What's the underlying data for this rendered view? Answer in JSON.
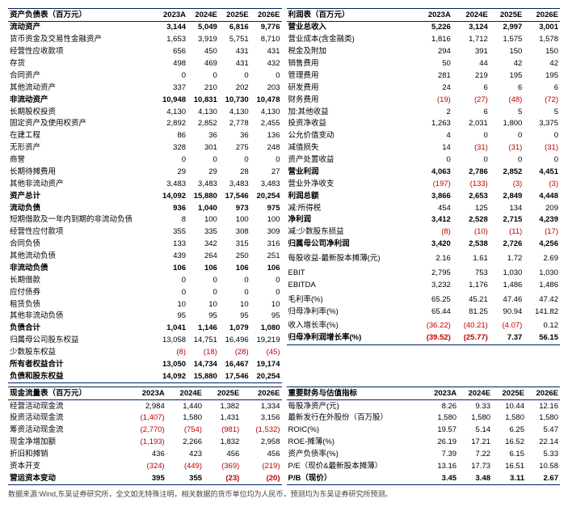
{
  "headers_years": [
    "2023A",
    "2024E",
    "2025E",
    "2026E"
  ],
  "left1": {
    "title": "资产负债表（百万元）",
    "rows": [
      {
        "lbl": "流动资产",
        "cls": "section-hdr",
        "v": [
          "3,144",
          "5,049",
          "6,816",
          "9,776"
        ]
      },
      {
        "lbl": "货币资金及交易性金融资产",
        "v": [
          "1,653",
          "3,919",
          "5,751",
          "8,710"
        ]
      },
      {
        "lbl": "经营性应收款项",
        "v": [
          "656",
          "450",
          "431",
          "431"
        ]
      },
      {
        "lbl": "存货",
        "v": [
          "498",
          "469",
          "431",
          "432"
        ]
      },
      {
        "lbl": "合同资产",
        "v": [
          "0",
          "0",
          "0",
          "0"
        ]
      },
      {
        "lbl": "其他流动资产",
        "v": [
          "337",
          "210",
          "202",
          "203"
        ]
      },
      {
        "lbl": "非流动资产",
        "cls": "section-hdr",
        "v": [
          "10,948",
          "10,831",
          "10,730",
          "10,478"
        ]
      },
      {
        "lbl": "长期股权投资",
        "v": [
          "4,130",
          "4,130",
          "4,130",
          "4,130"
        ]
      },
      {
        "lbl": "固定资产及使用权资产",
        "v": [
          "2,892",
          "2,852",
          "2,778",
          "2,455"
        ]
      },
      {
        "lbl": "在建工程",
        "v": [
          "86",
          "36",
          "36",
          "136"
        ]
      },
      {
        "lbl": "无形资产",
        "v": [
          "328",
          "301",
          "275",
          "248"
        ]
      },
      {
        "lbl": "商誉",
        "v": [
          "0",
          "0",
          "0",
          "0"
        ]
      },
      {
        "lbl": "长期待摊费用",
        "v": [
          "29",
          "29",
          "28",
          "27"
        ]
      },
      {
        "lbl": "其他非流动资产",
        "v": [
          "3,483",
          "3,483",
          "3,483",
          "3,483"
        ]
      },
      {
        "lbl": "资产总计",
        "cls": "total",
        "v": [
          "14,092",
          "15,880",
          "17,546",
          "20,254"
        ]
      },
      {
        "lbl": "流动负债",
        "cls": "section-hdr",
        "v": [
          "936",
          "1,040",
          "973",
          "975"
        ]
      },
      {
        "lbl": "短期借款及一年内到期的非流动负债",
        "v": [
          "8",
          "100",
          "100",
          "100"
        ]
      },
      {
        "lbl": "经营性应付款项",
        "v": [
          "355",
          "335",
          "308",
          "309"
        ]
      },
      {
        "lbl": "合同负债",
        "v": [
          "133",
          "342",
          "315",
          "316"
        ]
      },
      {
        "lbl": "其他流动负债",
        "v": [
          "439",
          "264",
          "250",
          "251"
        ]
      },
      {
        "lbl": "非流动负债",
        "cls": "section-hdr",
        "v": [
          "106",
          "106",
          "106",
          "106"
        ]
      },
      {
        "lbl": "长期借款",
        "v": [
          "0",
          "0",
          "0",
          "0"
        ]
      },
      {
        "lbl": "应付债券",
        "v": [
          "0",
          "0",
          "0",
          "0"
        ]
      },
      {
        "lbl": "租赁负债",
        "v": [
          "10",
          "10",
          "10",
          "10"
        ]
      },
      {
        "lbl": "其他非流动负债",
        "v": [
          "95",
          "95",
          "95",
          "95"
        ]
      },
      {
        "lbl": "负债合计",
        "cls": "total",
        "v": [
          "1,041",
          "1,146",
          "1,079",
          "1,080"
        ]
      },
      {
        "lbl": "归属母公司股东权益",
        "v": [
          "13,058",
          "14,751",
          "16,496",
          "19,219"
        ]
      },
      {
        "lbl": "少数股东权益",
        "v": [
          "(8)",
          "(18)",
          "(28)",
          "(45)"
        ],
        "neg": [
          1,
          1,
          1,
          1
        ]
      },
      {
        "lbl": "所有者权益合计",
        "cls": "total",
        "v": [
          "13,050",
          "14,734",
          "16,467",
          "19,174"
        ]
      },
      {
        "lbl": "负债和股东权益",
        "cls": "last-total",
        "v": [
          "14,092",
          "15,880",
          "17,546",
          "20,254"
        ]
      }
    ]
  },
  "right1": {
    "title": "利润表（百万元）",
    "rows": [
      {
        "lbl": "营业总收入",
        "cls": "section-hdr",
        "v": [
          "5,226",
          "3,124",
          "2,997",
          "3,001"
        ]
      },
      {
        "lbl": "营业成本(含金融类)",
        "v": [
          "1,816",
          "1,712",
          "1,575",
          "1,578"
        ]
      },
      {
        "lbl": "税金及附加",
        "v": [
          "294",
          "391",
          "150",
          "150"
        ]
      },
      {
        "lbl": "销售费用",
        "v": [
          "50",
          "44",
          "42",
          "42"
        ]
      },
      {
        "lbl": "管理费用",
        "v": [
          "281",
          "219",
          "195",
          "195"
        ]
      },
      {
        "lbl": "研发费用",
        "v": [
          "24",
          "6",
          "6",
          "6"
        ]
      },
      {
        "lbl": "财务费用",
        "v": [
          "(19)",
          "(27)",
          "(48)",
          "(72)"
        ],
        "neg": [
          1,
          1,
          1,
          1
        ]
      },
      {
        "lbl": "加:其他收益",
        "v": [
          "2",
          "6",
          "5",
          "5"
        ]
      },
      {
        "lbl": "投资净收益",
        "v": [
          "1,263",
          "2,031",
          "1,800",
          "3,375"
        ]
      },
      {
        "lbl": "公允价值变动",
        "v": [
          "4",
          "0",
          "0",
          "0"
        ]
      },
      {
        "lbl": "减值损失",
        "v": [
          "14",
          "(31)",
          "(31)",
          "(31)"
        ],
        "neg": [
          0,
          1,
          1,
          1
        ]
      },
      {
        "lbl": "资产处置收益",
        "v": [
          "0",
          "0",
          "0",
          "0"
        ]
      },
      {
        "lbl": "营业利润",
        "cls": "total",
        "v": [
          "4,063",
          "2,786",
          "2,852",
          "4,451"
        ]
      },
      {
        "lbl": "营业外净收支",
        "v": [
          "(197)",
          "(133)",
          "(3)",
          "(3)"
        ],
        "neg": [
          1,
          1,
          1,
          1
        ]
      },
      {
        "lbl": "利润总额",
        "cls": "total",
        "v": [
          "3,866",
          "2,653",
          "2,849",
          "4,448"
        ]
      },
      {
        "lbl": "减:所得税",
        "v": [
          "454",
          "125",
          "134",
          "209"
        ]
      },
      {
        "lbl": "净利润",
        "cls": "total",
        "v": [
          "3,412",
          "2,528",
          "2,715",
          "4,239"
        ]
      },
      {
        "lbl": "减:少数股东损益",
        "v": [
          "(8)",
          "(10)",
          "(11)",
          "(17)"
        ],
        "neg": [
          1,
          1,
          1,
          1
        ]
      },
      {
        "lbl": "归属母公司净利润",
        "cls": "total",
        "v": [
          "3,420",
          "2,538",
          "2,726",
          "4,256"
        ]
      },
      {
        "lbl": "",
        "v": [
          "",
          "",
          "",
          ""
        ]
      },
      {
        "lbl": "每股收益-最新股本摊薄(元)",
        "v": [
          "2.16",
          "1.61",
          "1.72",
          "2.69"
        ]
      },
      {
        "lbl": "",
        "v": [
          "",
          "",
          "",
          ""
        ]
      },
      {
        "lbl": "EBIT",
        "v": [
          "2,795",
          "753",
          "1,030",
          "1,030"
        ]
      },
      {
        "lbl": "EBITDA",
        "v": [
          "3,232",
          "1,176",
          "1,486",
          "1,486"
        ]
      },
      {
        "lbl": "",
        "v": [
          "",
          "",
          "",
          ""
        ]
      },
      {
        "lbl": "毛利率(%)",
        "v": [
          "65.25",
          "45.21",
          "47.46",
          "47.42"
        ]
      },
      {
        "lbl": "归母净利率(%)",
        "v": [
          "65.44",
          "81.25",
          "90.94",
          "141.82"
        ]
      },
      {
        "lbl": "",
        "v": [
          "",
          "",
          "",
          ""
        ]
      },
      {
        "lbl": "收入增长率(%)",
        "v": [
          "(36.22)",
          "(40.21)",
          "(4.07)",
          "0.12"
        ],
        "neg": [
          1,
          1,
          1,
          0
        ]
      },
      {
        "lbl": "归母净利润增长率(%)",
        "cls": "last-total",
        "v": [
          "(39.52)",
          "(25.77)",
          "7.37",
          "56.15"
        ],
        "neg": [
          1,
          1,
          0,
          0
        ]
      }
    ]
  },
  "left2": {
    "title": "现金流量表（百万元）",
    "rows": [
      {
        "lbl": "经营活动现金流",
        "v": [
          "2,984",
          "1,440",
          "1,382",
          "1,334"
        ]
      },
      {
        "lbl": "投资活动现金流",
        "v": [
          "(1,407)",
          "1,580",
          "1,431",
          "3,156"
        ],
        "neg": [
          1,
          0,
          0,
          0
        ]
      },
      {
        "lbl": "筹资活动现金流",
        "v": [
          "(2,770)",
          "(754)",
          "(981)",
          "(1,532)"
        ],
        "neg": [
          1,
          1,
          1,
          1
        ]
      },
      {
        "lbl": "现金净增加额",
        "v": [
          "(1,193)",
          "2,266",
          "1,832",
          "2,958"
        ],
        "neg": [
          1,
          0,
          0,
          0
        ]
      },
      {
        "lbl": "折旧和摊销",
        "v": [
          "436",
          "423",
          "456",
          "456"
        ]
      },
      {
        "lbl": "资本开支",
        "v": [
          "(324)",
          "(449)",
          "(369)",
          "(219)"
        ],
        "neg": [
          1,
          1,
          1,
          1
        ]
      },
      {
        "lbl": "营运资本变动",
        "cls": "last-total",
        "v": [
          "395",
          "355",
          "(23)",
          "(20)"
        ],
        "neg": [
          0,
          0,
          1,
          1
        ]
      }
    ]
  },
  "right2": {
    "title": "重要财务与估值指标",
    "rows": [
      {
        "lbl": "每股净资产(元)",
        "v": [
          "8.26",
          "9.33",
          "10.44",
          "12.16"
        ]
      },
      {
        "lbl": "最新发行在外股份（百万股）",
        "v": [
          "1,580",
          "1,580",
          "1,580",
          "1,580"
        ]
      },
      {
        "lbl": "ROIC(%)",
        "v": [
          "19.57",
          "5.14",
          "6.25",
          "5.47"
        ]
      },
      {
        "lbl": "ROE-摊薄(%)",
        "v": [
          "26.19",
          "17.21",
          "16.52",
          "22.14"
        ]
      },
      {
        "lbl": "资产负债率(%)",
        "v": [
          "7.39",
          "7.22",
          "6.15",
          "5.33"
        ]
      },
      {
        "lbl": "P/E（现价&最新股本摊薄）",
        "v": [
          "13.16",
          "17.73",
          "16.51",
          "10.58"
        ]
      },
      {
        "lbl": "P/B（现价）",
        "cls": "last-total",
        "v": [
          "3.45",
          "3.48",
          "3.11",
          "2.67"
        ]
      }
    ]
  },
  "footnote": "数据来源:Wind,东吴证券研究所，全文如无特殊注明，相关数据的货币单位均为人民币，预测均为东吴证券研究所预测。"
}
